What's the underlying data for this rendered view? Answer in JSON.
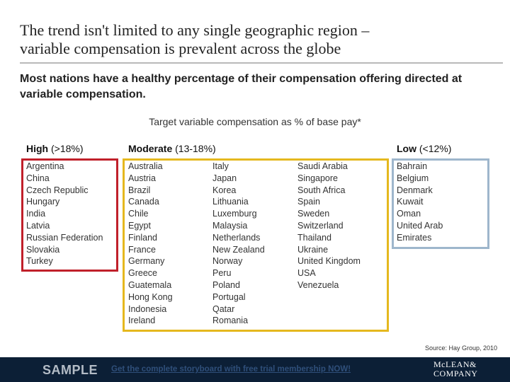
{
  "header": {
    "title_line1": "The trend isn't limited to any single geographic region –",
    "title_line2": "variable compensation is prevalent across the globe",
    "subtitle": "Most nations have a healthy percentage of their compensation offering directed at variable compensation."
  },
  "chart_title": "Target variable compensation as % of base pay*",
  "categories": {
    "high": {
      "label": "High",
      "range": "(>18%)",
      "color": "#c0202a",
      "countries": [
        "Argentina",
        "China",
        "Czech Republic",
        "Hungary",
        "India",
        "Latvia",
        "Russian Federation",
        "Slovakia",
        "Turkey"
      ]
    },
    "moderate": {
      "label": "Moderate",
      "range": "(13-18%)",
      "color": "#e5b81e",
      "col1": [
        "Australia",
        "Austria",
        "Brazil",
        "Canada",
        "Chile",
        "Egypt",
        "Finland",
        "France",
        "Germany",
        "Greece",
        "Guatemala",
        "Hong Kong",
        "Indonesia",
        "Ireland"
      ],
      "col2": [
        "Italy",
        "Japan",
        "Korea",
        "Lithuania",
        "Luxemburg",
        "Malaysia",
        "Netherlands",
        "New Zealand",
        "Norway",
        "Peru",
        "Poland",
        "Portugal",
        "Qatar",
        "Romania"
      ],
      "col3": [
        "Saudi Arabia",
        "Singapore",
        "South Africa",
        "Spain",
        "Sweden",
        "Switzerland",
        "Thailand",
        "Ukraine",
        "United Kingdom",
        "USA",
        "Venezuela"
      ]
    },
    "low": {
      "label": "Low",
      "range": "(<12%)",
      "color": "#9eb6cc",
      "countries": [
        "Bahrain",
        "Belgium",
        "Denmark",
        "Kuwait",
        "Oman",
        "United Arab",
        "Emirates"
      ]
    }
  },
  "source": "Source: Hay Group, 2010",
  "footer": {
    "sample": "SAMPLE",
    "promo": "Get the complete storyboard with free trial membership NOW!",
    "logo_line1": "McLEAN&",
    "logo_line2": "COMPANY"
  }
}
